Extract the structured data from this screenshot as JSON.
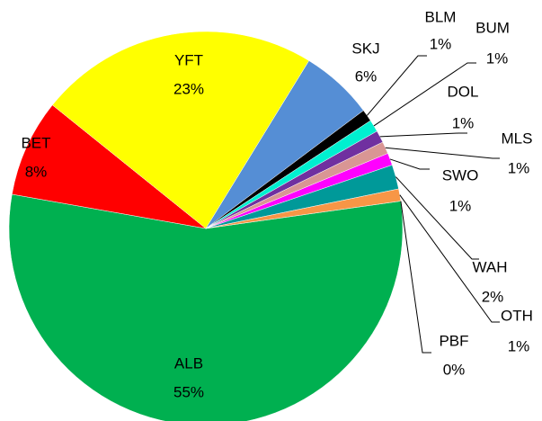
{
  "chart_data": {
    "type": "pie",
    "categories": [
      "ALB",
      "BET",
      "YFT",
      "SKJ",
      "BLM",
      "BUM",
      "DOL",
      "MLS",
      "SWO",
      "WAH",
      "OTH",
      "PBF"
    ],
    "values": [
      55,
      8,
      23,
      6,
      1,
      1,
      1,
      1,
      1,
      2,
      1,
      0
    ],
    "value_labels": [
      "55%",
      "8%",
      "23%",
      "6%",
      "1%",
      "1%",
      "1%",
      "1%",
      "1%",
      "2%",
      "1%",
      "0%"
    ],
    "colors": [
      "#00b050",
      "#ff0000",
      "#ffff00",
      "#558ed5",
      "#000000",
      "#00f0d0",
      "#7030a0",
      "#d99694",
      "#ff00ff",
      "#009999",
      "#f79646",
      "#a6a6a6"
    ]
  }
}
